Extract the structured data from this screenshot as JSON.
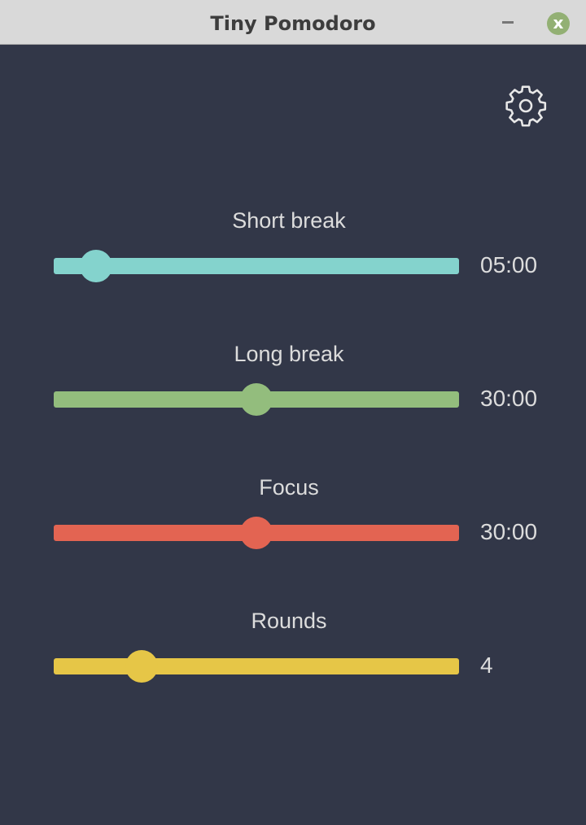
{
  "window": {
    "title": "Tiny Pomodoro",
    "minimize_icon": "minimize-icon",
    "close_icon": "close-icon",
    "close_glyph": "x"
  },
  "settings": {
    "icon": "gear-icon"
  },
  "sliders": [
    {
      "label": "Short break",
      "value_text": "05:00",
      "fraction": 0.104,
      "color": "#84d3cd"
    },
    {
      "label": "Long break",
      "value_text": "30:00",
      "fraction": 0.5,
      "color": "#93bd7d"
    },
    {
      "label": "Focus",
      "value_text": "30:00",
      "fraction": 0.5,
      "color": "#e36452"
    },
    {
      "label": "Rounds",
      "value_text": "4",
      "fraction": 0.217,
      "color": "#e6c647"
    }
  ]
}
